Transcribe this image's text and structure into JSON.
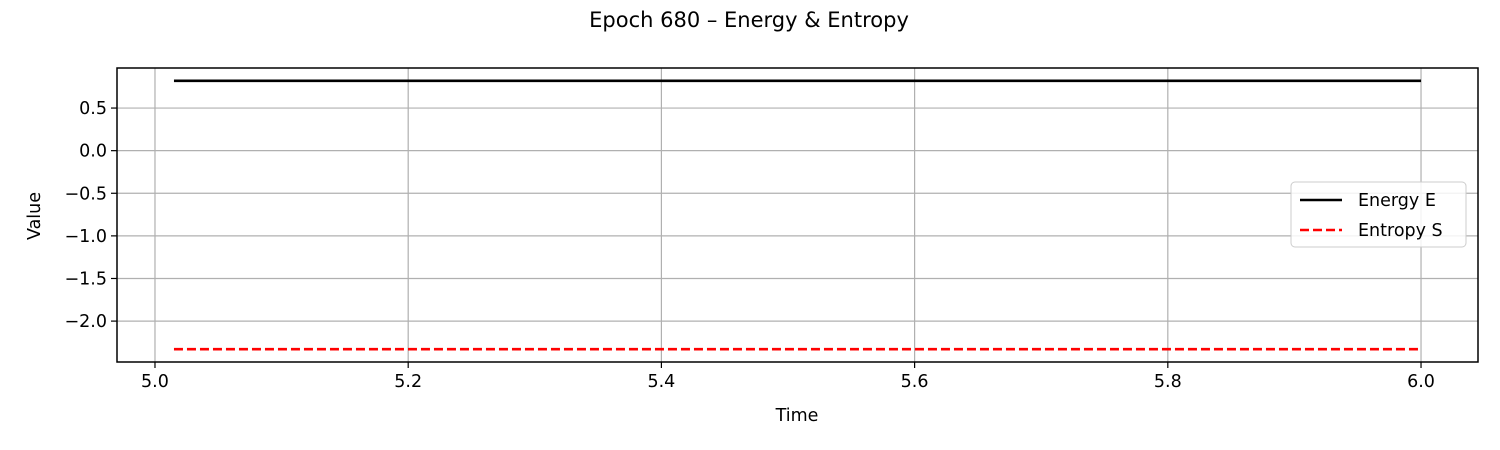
{
  "chart_data": {
    "type": "line",
    "title": "Epoch 680 – Energy & Entropy",
    "xlabel": "Time",
    "ylabel": "Value",
    "xlim": [
      4.97,
      6.045
    ],
    "ylim": [
      -2.48,
      0.97
    ],
    "xticks": [
      5.0,
      5.2,
      5.4,
      5.6,
      5.8,
      6.0
    ],
    "xtick_labels": [
      "5.0",
      "5.2",
      "5.4",
      "5.6",
      "5.8",
      "6.0"
    ],
    "yticks": [
      0.5,
      0.0,
      -0.5,
      -1.0,
      -1.5,
      -2.0
    ],
    "ytick_labels": [
      "0.5",
      "0.0",
      "−0.5",
      "−1.0",
      "−1.5",
      "−2.0"
    ],
    "grid": true,
    "legend_position": "center-right",
    "series": [
      {
        "name": "Energy E",
        "color": "#000000",
        "style": "solid",
        "x": [
          5.015,
          6.0
        ],
        "y": [
          0.82,
          0.82
        ]
      },
      {
        "name": "Entropy S",
        "color": "#ff0000",
        "style": "dashed",
        "x": [
          5.015,
          6.0
        ],
        "y": [
          -2.33,
          -2.33
        ]
      }
    ]
  }
}
